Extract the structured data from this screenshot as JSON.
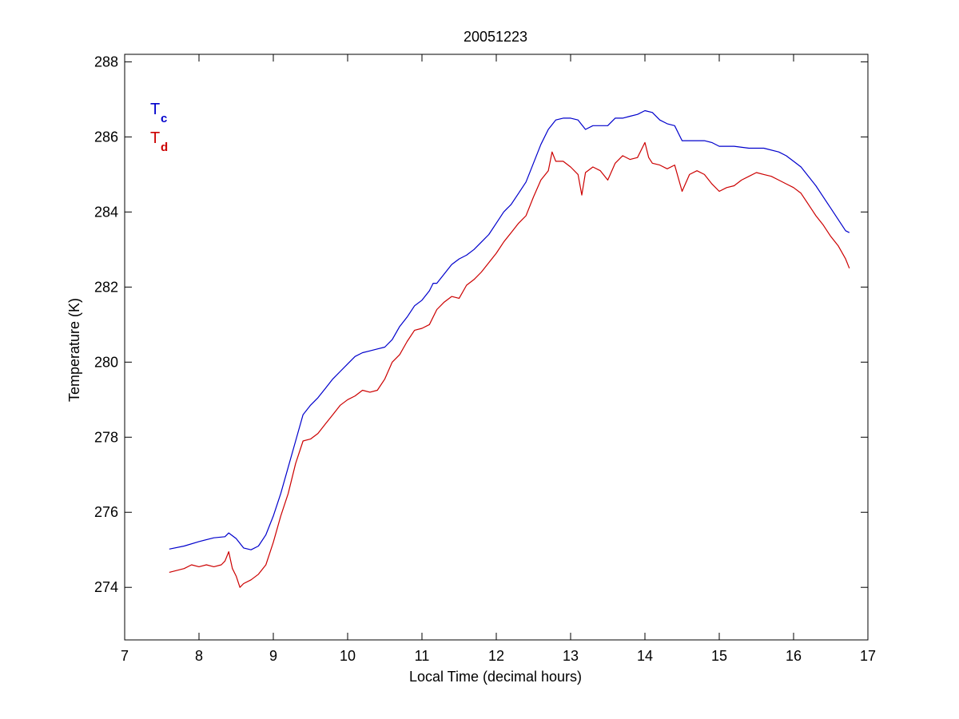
{
  "chart_data": {
    "type": "line",
    "title": "20051223",
    "xlabel": "Local Time (decimal hours)",
    "ylabel": "Temperature (K)",
    "xlim": [
      7,
      17
    ],
    "ylim": [
      272.6,
      288.2
    ],
    "xticks": [
      7,
      8,
      9,
      10,
      11,
      12,
      13,
      14,
      15,
      16,
      17
    ],
    "yticks": [
      274,
      276,
      278,
      280,
      282,
      284,
      286,
      288
    ],
    "grid": false,
    "legend_position": "top-left",
    "series": [
      {
        "name": "T",
        "subscript": "c",
        "color": "#0000cc",
        "points": [
          [
            7.6,
            275.02
          ],
          [
            7.8,
            275.1
          ],
          [
            8.0,
            275.22
          ],
          [
            8.2,
            275.32
          ],
          [
            8.35,
            275.35
          ],
          [
            8.4,
            275.45
          ],
          [
            8.5,
            275.3
          ],
          [
            8.6,
            275.05
          ],
          [
            8.7,
            275.0
          ],
          [
            8.8,
            275.1
          ],
          [
            8.9,
            275.4
          ],
          [
            9.0,
            275.9
          ],
          [
            9.1,
            276.5
          ],
          [
            9.2,
            277.2
          ],
          [
            9.3,
            277.9
          ],
          [
            9.4,
            278.6
          ],
          [
            9.5,
            278.85
          ],
          [
            9.6,
            279.05
          ],
          [
            9.7,
            279.3
          ],
          [
            9.8,
            279.55
          ],
          [
            9.9,
            279.75
          ],
          [
            10.0,
            279.95
          ],
          [
            10.1,
            280.15
          ],
          [
            10.2,
            280.25
          ],
          [
            10.3,
            280.3
          ],
          [
            10.4,
            280.35
          ],
          [
            10.5,
            280.4
          ],
          [
            10.6,
            280.6
          ],
          [
            10.7,
            280.95
          ],
          [
            10.8,
            281.2
          ],
          [
            10.9,
            281.5
          ],
          [
            11.0,
            281.65
          ],
          [
            11.1,
            281.9
          ],
          [
            11.15,
            282.1
          ],
          [
            11.2,
            282.1
          ],
          [
            11.3,
            282.35
          ],
          [
            11.4,
            282.6
          ],
          [
            11.5,
            282.75
          ],
          [
            11.6,
            282.85
          ],
          [
            11.7,
            283.0
          ],
          [
            11.8,
            283.2
          ],
          [
            11.9,
            283.4
          ],
          [
            12.0,
            283.7
          ],
          [
            12.1,
            284.0
          ],
          [
            12.2,
            284.2
          ],
          [
            12.3,
            284.5
          ],
          [
            12.4,
            284.8
          ],
          [
            12.5,
            285.3
          ],
          [
            12.6,
            285.8
          ],
          [
            12.7,
            286.2
          ],
          [
            12.8,
            286.45
          ],
          [
            12.9,
            286.5
          ],
          [
            13.0,
            286.5
          ],
          [
            13.1,
            286.45
          ],
          [
            13.2,
            286.2
          ],
          [
            13.3,
            286.3
          ],
          [
            13.4,
            286.3
          ],
          [
            13.5,
            286.3
          ],
          [
            13.6,
            286.5
          ],
          [
            13.7,
            286.5
          ],
          [
            13.8,
            286.55
          ],
          [
            13.9,
            286.6
          ],
          [
            14.0,
            286.7
          ],
          [
            14.1,
            286.65
          ],
          [
            14.2,
            286.45
          ],
          [
            14.3,
            286.35
          ],
          [
            14.4,
            286.3
          ],
          [
            14.5,
            285.9
          ],
          [
            14.6,
            285.9
          ],
          [
            14.7,
            285.9
          ],
          [
            14.8,
            285.9
          ],
          [
            14.9,
            285.85
          ],
          [
            15.0,
            285.75
          ],
          [
            15.2,
            285.75
          ],
          [
            15.4,
            285.7
          ],
          [
            15.6,
            285.7
          ],
          [
            15.8,
            285.6
          ],
          [
            15.9,
            285.5
          ],
          [
            16.0,
            285.35
          ],
          [
            16.1,
            285.2
          ],
          [
            16.2,
            284.95
          ],
          [
            16.3,
            284.7
          ],
          [
            16.4,
            284.4
          ],
          [
            16.5,
            284.1
          ],
          [
            16.6,
            283.8
          ],
          [
            16.7,
            283.5
          ],
          [
            16.75,
            283.45
          ]
        ]
      },
      {
        "name": "T",
        "subscript": "d",
        "color": "#cc0000",
        "points": [
          [
            7.6,
            274.4
          ],
          [
            7.7,
            274.45
          ],
          [
            7.8,
            274.5
          ],
          [
            7.9,
            274.6
          ],
          [
            8.0,
            274.55
          ],
          [
            8.1,
            274.6
          ],
          [
            8.2,
            274.55
          ],
          [
            8.3,
            274.6
          ],
          [
            8.35,
            274.7
          ],
          [
            8.4,
            274.95
          ],
          [
            8.45,
            274.5
          ],
          [
            8.5,
            274.3
          ],
          [
            8.55,
            274.0
          ],
          [
            8.6,
            274.1
          ],
          [
            8.7,
            274.2
          ],
          [
            8.8,
            274.35
          ],
          [
            8.9,
            274.6
          ],
          [
            9.0,
            275.2
          ],
          [
            9.1,
            275.9
          ],
          [
            9.2,
            276.5
          ],
          [
            9.3,
            277.3
          ],
          [
            9.4,
            277.9
          ],
          [
            9.5,
            277.95
          ],
          [
            9.6,
            278.1
          ],
          [
            9.7,
            278.35
          ],
          [
            9.8,
            278.6
          ],
          [
            9.9,
            278.85
          ],
          [
            10.0,
            279.0
          ],
          [
            10.1,
            279.1
          ],
          [
            10.2,
            279.25
          ],
          [
            10.3,
            279.2
          ],
          [
            10.4,
            279.25
          ],
          [
            10.5,
            279.55
          ],
          [
            10.6,
            280.0
          ],
          [
            10.7,
            280.2
          ],
          [
            10.8,
            280.55
          ],
          [
            10.9,
            280.85
          ],
          [
            11.0,
            280.9
          ],
          [
            11.1,
            281.0
          ],
          [
            11.2,
            281.4
          ],
          [
            11.3,
            281.6
          ],
          [
            11.4,
            281.75
          ],
          [
            11.5,
            281.7
          ],
          [
            11.6,
            282.05
          ],
          [
            11.7,
            282.2
          ],
          [
            11.8,
            282.4
          ],
          [
            11.9,
            282.65
          ],
          [
            12.0,
            282.9
          ],
          [
            12.1,
            283.2
          ],
          [
            12.2,
            283.45
          ],
          [
            12.3,
            283.7
          ],
          [
            12.4,
            283.9
          ],
          [
            12.5,
            284.4
          ],
          [
            12.6,
            284.85
          ],
          [
            12.7,
            285.1
          ],
          [
            12.75,
            285.6
          ],
          [
            12.8,
            285.35
          ],
          [
            12.9,
            285.35
          ],
          [
            13.0,
            285.2
          ],
          [
            13.1,
            285.0
          ],
          [
            13.15,
            284.45
          ],
          [
            13.2,
            285.05
          ],
          [
            13.3,
            285.2
          ],
          [
            13.4,
            285.1
          ],
          [
            13.5,
            284.85
          ],
          [
            13.6,
            285.3
          ],
          [
            13.7,
            285.5
          ],
          [
            13.8,
            285.4
          ],
          [
            13.9,
            285.45
          ],
          [
            14.0,
            285.85
          ],
          [
            14.05,
            285.45
          ],
          [
            14.1,
            285.3
          ],
          [
            14.2,
            285.25
          ],
          [
            14.3,
            285.15
          ],
          [
            14.4,
            285.25
          ],
          [
            14.5,
            284.55
          ],
          [
            14.6,
            285.0
          ],
          [
            14.7,
            285.1
          ],
          [
            14.8,
            285.0
          ],
          [
            14.9,
            284.75
          ],
          [
            15.0,
            284.55
          ],
          [
            15.1,
            284.65
          ],
          [
            15.2,
            284.7
          ],
          [
            15.3,
            284.85
          ],
          [
            15.4,
            284.95
          ],
          [
            15.5,
            285.05
          ],
          [
            15.6,
            285.0
          ],
          [
            15.7,
            284.95
          ],
          [
            15.8,
            284.85
          ],
          [
            15.9,
            284.75
          ],
          [
            16.0,
            284.65
          ],
          [
            16.1,
            284.5
          ],
          [
            16.2,
            284.2
          ],
          [
            16.3,
            283.9
          ],
          [
            16.4,
            283.65
          ],
          [
            16.5,
            283.35
          ],
          [
            16.6,
            283.1
          ],
          [
            16.7,
            282.75
          ],
          [
            16.75,
            282.5
          ]
        ]
      }
    ]
  }
}
